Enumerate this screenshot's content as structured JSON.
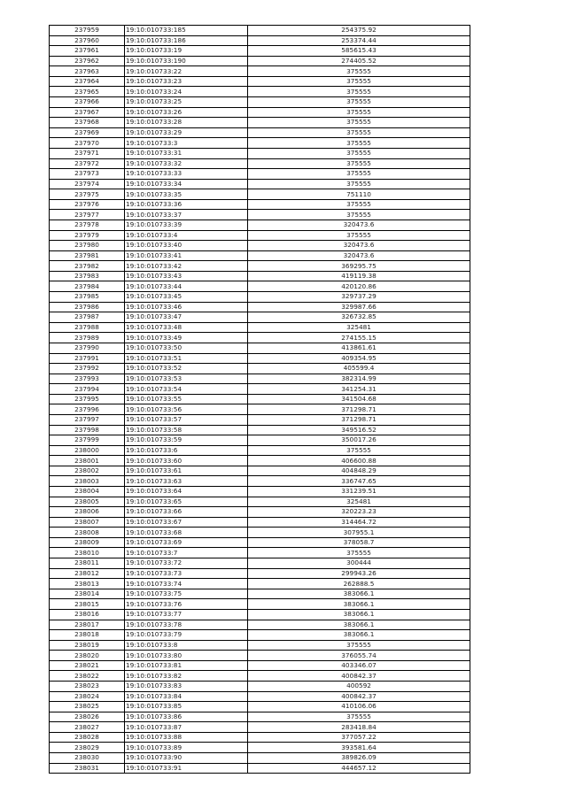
{
  "table": {
    "rows": [
      [
        "237959",
        "19:10:010733:185",
        "254375.92"
      ],
      [
        "237960",
        "19:10:010733:186",
        "253374.44"
      ],
      [
        "237961",
        "19:10:010733:19",
        "585615.43"
      ],
      [
        "237962",
        "19:10:010733:190",
        "274405.52"
      ],
      [
        "237963",
        "19:10:010733:22",
        "375555"
      ],
      [
        "237964",
        "19:10:010733:23",
        "375555"
      ],
      [
        "237965",
        "19:10:010733:24",
        "375555"
      ],
      [
        "237966",
        "19:10:010733:25",
        "375555"
      ],
      [
        "237967",
        "19:10:010733:26",
        "375555"
      ],
      [
        "237968",
        "19:10:010733:28",
        "375555"
      ],
      [
        "237969",
        "19:10:010733:29",
        "375555"
      ],
      [
        "237970",
        "19:10:010733:3",
        "375555"
      ],
      [
        "237971",
        "19:10:010733:31",
        "375555"
      ],
      [
        "237972",
        "19:10:010733:32",
        "375555"
      ],
      [
        "237973",
        "19:10:010733:33",
        "375555"
      ],
      [
        "237974",
        "19:10:010733:34",
        "375555"
      ],
      [
        "237975",
        "19:10:010733:35",
        "751110"
      ],
      [
        "237976",
        "19:10:010733:36",
        "375555"
      ],
      [
        "237977",
        "19:10:010733:37",
        "375555"
      ],
      [
        "237978",
        "19:10:010733:39",
        "320473.6"
      ],
      [
        "237979",
        "19:10:010733:4",
        "375555"
      ],
      [
        "237980",
        "19:10:010733:40",
        "320473.6"
      ],
      [
        "237981",
        "19:10:010733:41",
        "320473.6"
      ],
      [
        "237982",
        "19:10:010733:42",
        "369295.75"
      ],
      [
        "237983",
        "19:10:010733:43",
        "419119.38"
      ],
      [
        "237984",
        "19:10:010733:44",
        "420120.86"
      ],
      [
        "237985",
        "19:10:010733:45",
        "329737.29"
      ],
      [
        "237986",
        "19:10:010733:46",
        "329987.66"
      ],
      [
        "237987",
        "19:10:010733:47",
        "326732.85"
      ],
      [
        "237988",
        "19:10:010733:48",
        "325481"
      ],
      [
        "237989",
        "19:10:010733:49",
        "274155.15"
      ],
      [
        "237990",
        "19:10:010733:50",
        "413861.61"
      ],
      [
        "237991",
        "19:10:010733:51",
        "409354.95"
      ],
      [
        "237992",
        "19:10:010733:52",
        "405599.4"
      ],
      [
        "237993",
        "19:10:010733:53",
        "382314.99"
      ],
      [
        "237994",
        "19:10:010733:54",
        "341254.31"
      ],
      [
        "237995",
        "19:10:010733:55",
        "341504.68"
      ],
      [
        "237996",
        "19:10:010733:56",
        "371298.71"
      ],
      [
        "237997",
        "19:10:010733:57",
        "371298.71"
      ],
      [
        "237998",
        "19:10:010733:58",
        "349516.52"
      ],
      [
        "237999",
        "19:10:010733:59",
        "350017.26"
      ],
      [
        "238000",
        "19:10:010733:6",
        "375555"
      ],
      [
        "238001",
        "19:10:010733:60",
        "406600.88"
      ],
      [
        "238002",
        "19:10:010733:61",
        "404848.29"
      ],
      [
        "238003",
        "19:10:010733:63",
        "336747.65"
      ],
      [
        "238004",
        "19:10:010733:64",
        "331239.51"
      ],
      [
        "238005",
        "19:10:010733:65",
        "325481"
      ],
      [
        "238006",
        "19:10:010733:66",
        "320223.23"
      ],
      [
        "238007",
        "19:10:010733:67",
        "314464.72"
      ],
      [
        "238008",
        "19:10:010733:68",
        "307955.1"
      ],
      [
        "238009",
        "19:10:010733:69",
        "378058.7"
      ],
      [
        "238010",
        "19:10:010733:7",
        "375555"
      ],
      [
        "238011",
        "19:10:010733:72",
        "300444"
      ],
      [
        "238012",
        "19:10:010733:73",
        "299943.26"
      ],
      [
        "238013",
        "19:10:010733:74",
        "262888.5"
      ],
      [
        "238014",
        "19:10:010733:75",
        "383066.1"
      ],
      [
        "238015",
        "19:10:010733:76",
        "383066.1"
      ],
      [
        "238016",
        "19:10:010733:77",
        "383066.1"
      ],
      [
        "238017",
        "19:10:010733:78",
        "383066.1"
      ],
      [
        "238018",
        "19:10:010733:79",
        "383066.1"
      ],
      [
        "238019",
        "19:10:010733:8",
        "375555"
      ],
      [
        "238020",
        "19:10:010733:80",
        "376055.74"
      ],
      [
        "238021",
        "19:10:010733:81",
        "403346.07"
      ],
      [
        "238022",
        "19:10:010733:82",
        "400842.37"
      ],
      [
        "238023",
        "19:10:010733:83",
        "400592"
      ],
      [
        "238024",
        "19:10:010733:84",
        "400842.37"
      ],
      [
        "238025",
        "19:10:010733:85",
        "410106.06"
      ],
      [
        "238026",
        "19:10:010733:86",
        "375555"
      ],
      [
        "238027",
        "19:10:010733:87",
        "283418.84"
      ],
      [
        "238028",
        "19:10:010733:88",
        "377057.22"
      ],
      [
        "238029",
        "19:10:010733:89",
        "393581.64"
      ],
      [
        "238030",
        "19:10:010733:90",
        "389826.09"
      ],
      [
        "238031",
        "19:10:010733:91",
        "444657.12"
      ]
    ]
  }
}
